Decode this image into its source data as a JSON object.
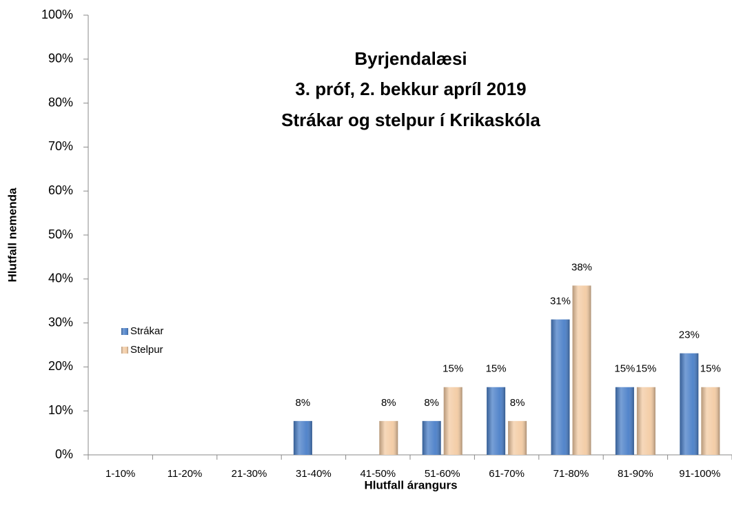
{
  "chart_data": {
    "type": "bar",
    "title": [
      "Byrjendalæsi",
      "3. próf, 2. bekkur apríl 2019",
      "Strákar og stelpur í Krikaskóla"
    ],
    "x_label": "Hlutfall árangurs",
    "y_label": "Hlutfall nemenda",
    "categories": [
      "1-10%",
      "11-20%",
      "21-30%",
      "31-40%",
      "41-50%",
      "51-60%",
      "61-70%",
      "71-80%",
      "81-90%",
      "91-100%"
    ],
    "series": [
      {
        "name": "Strákar",
        "color": "#4a7fc8",
        "values": [
          0,
          0,
          0,
          7.7,
          0,
          7.7,
          15.4,
          30.8,
          15.4,
          23.1
        ],
        "value_labels": [
          null,
          null,
          null,
          "8%",
          null,
          "8%",
          "15%",
          "31%",
          "15%",
          "23%"
        ]
      },
      {
        "name": "Stelpur",
        "color": "#f3cba3",
        "values": [
          0,
          0,
          0,
          0,
          7.7,
          15.4,
          7.7,
          38.5,
          15.4,
          15.4
        ],
        "value_labels": [
          null,
          null,
          null,
          null,
          "8%",
          "15%",
          "8%",
          "38%",
          "15%",
          "15%"
        ]
      }
    ],
    "ylim": [
      0,
      100
    ],
    "yticks": [
      {
        "value": 0,
        "label": "0%"
      },
      {
        "value": 10,
        "label": "10%"
      },
      {
        "value": 20,
        "label": "20%"
      },
      {
        "value": 30,
        "label": "30%"
      },
      {
        "value": 40,
        "label": "40%"
      },
      {
        "value": 50,
        "label": "50%"
      },
      {
        "value": 60,
        "label": "60%"
      },
      {
        "value": 70,
        "label": "70%"
      },
      {
        "value": 80,
        "label": "80%"
      },
      {
        "value": 90,
        "label": "90%"
      },
      {
        "value": 100,
        "label": "100%"
      }
    ],
    "grid": false,
    "legend": "left"
  }
}
